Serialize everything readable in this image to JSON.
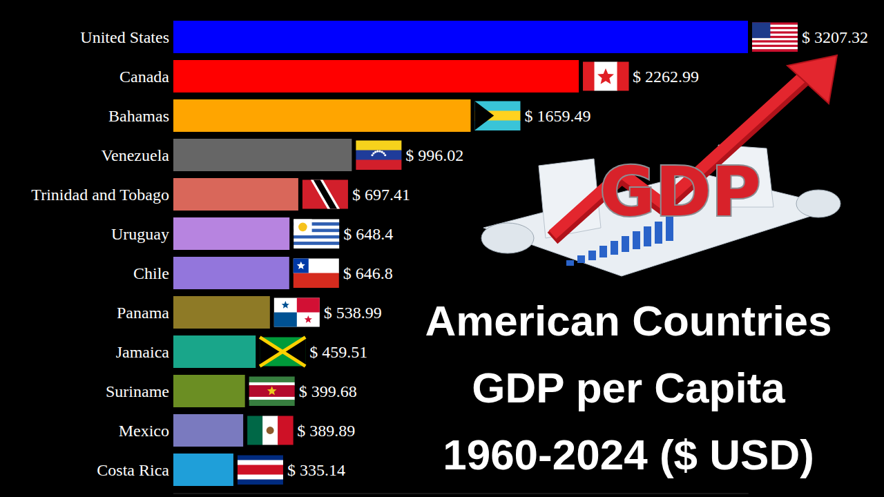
{
  "chart_data": {
    "type": "bar",
    "orientation": "horizontal",
    "title": "American Countries GDP per Capita 1960-2024 ($ USD)",
    "annotations": [
      "GDP"
    ],
    "categories": [
      "United States",
      "Canada",
      "Bahamas",
      "Venezuela",
      "Trinidad and Tobago",
      "Uruguay",
      "Chile",
      "Panama",
      "Jamaica",
      "Suriname",
      "Mexico",
      "Costa Rica"
    ],
    "values": [
      3207.32,
      2262.99,
      1659.49,
      996.02,
      697.41,
      648.4,
      646.8,
      538.99,
      459.51,
      399.68,
      389.89,
      335.14
    ],
    "value_labels": [
      "$ 3207.32",
      "$ 2262.99",
      "$ 1659.49",
      "$ 996.02",
      "$ 697.41",
      "$ 648.4",
      "$ 646.8",
      "$ 538.99",
      "$ 459.51",
      "$ 399.68",
      "$ 389.89",
      "$ 335.14"
    ],
    "colors": [
      "#0000ff",
      "#ff0000",
      "#ffa500",
      "#666666",
      "#d9675a",
      "#b784e0",
      "#9376dc",
      "#8e7a26",
      "#19a68a",
      "#6b8e23",
      "#7a7abf",
      "#1f9fd9"
    ],
    "xlim": [
      0,
      3210
    ],
    "data_labels": true,
    "tick_labels": "y",
    "grid": false
  }
}
